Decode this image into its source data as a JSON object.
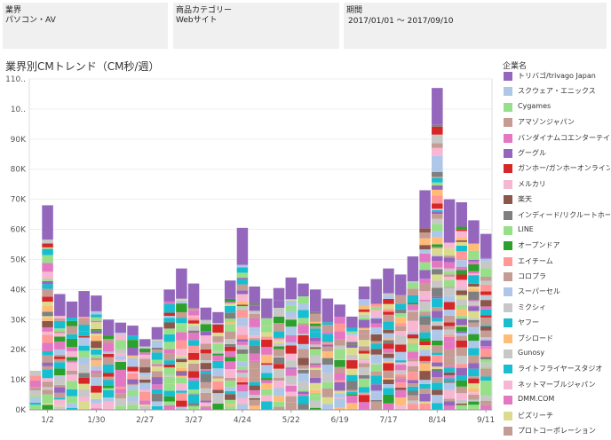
{
  "filters": [
    {
      "label": "業界",
      "value": "パソコン・AV"
    },
    {
      "label": "商品カテゴリー",
      "value": "Webサイト"
    },
    {
      "label": "期間",
      "value": "2017/01/01 ～ 2017/09/10"
    }
  ],
  "legend_title": "企業名",
  "chart_data": {
    "type": "bar",
    "stacked": true,
    "title": "業界別CMトレンド（CM秒/週）",
    "xlabel": "",
    "ylabel": "",
    "ylim": [
      0,
      110000
    ],
    "y_ticks": [
      "0K",
      "10K",
      "20K",
      "30K",
      "40K",
      "50K",
      "60K",
      "70K",
      "80K",
      "90K",
      "10..",
      "110.."
    ],
    "x_tick_labels": [
      "1/2",
      "1/30",
      "2/27",
      "3/27",
      "4/24",
      "5/22",
      "6/19",
      "7/17",
      "8/14",
      "9/11"
    ],
    "grid": true,
    "legend_placement": "right",
    "weeks": [
      "12/26",
      "1/2",
      "1/9",
      "1/16",
      "1/23",
      "1/30",
      "2/6",
      "2/13",
      "2/20",
      "2/27",
      "3/6",
      "3/13",
      "3/20",
      "3/27",
      "4/3",
      "4/10",
      "4/17",
      "4/24",
      "5/1",
      "5/8",
      "5/15",
      "5/22",
      "5/29",
      "6/5",
      "6/12",
      "6/19",
      "6/26",
      "7/3",
      "7/10",
      "7/17",
      "7/24",
      "7/31",
      "8/7",
      "8/14",
      "8/21",
      "8/28",
      "9/4",
      "9/11"
    ],
    "totals": [
      13000,
      68000,
      38500,
      36000,
      39500,
      38000,
      30000,
      29000,
      28000,
      23500,
      27500,
      40000,
      47000,
      42000,
      34000,
      32500,
      43000,
      60500,
      41000,
      37000,
      40500,
      44000,
      42000,
      40000,
      37000,
      35000,
      31000,
      41000,
      43500,
      47000,
      45000,
      51000,
      73000,
      107000,
      70000,
      69000,
      63000,
      58500
    ],
    "series": [
      {
        "name": "トリバゴ/trivago Japan",
        "color": "#9467bd"
      },
      {
        "name": "スクウェア・エニックス",
        "color": "#aec7e8"
      },
      {
        "name": "Cygames",
        "color": "#98df8a"
      },
      {
        "name": "アマゾンジャパン",
        "color": "#c49c94"
      },
      {
        "name": "バンダイナムコエンターテイン..",
        "color": "#e377c2"
      },
      {
        "name": "グーグル",
        "color": "#9467bd"
      },
      {
        "name": "ガンホー/ガンホーオンライン..",
        "color": "#d62728"
      },
      {
        "name": "メルカリ",
        "color": "#f7b6d2"
      },
      {
        "name": "楽天",
        "color": "#8c564b"
      },
      {
        "name": "インディード/リクルートホール..",
        "color": "#7f7f7f"
      },
      {
        "name": "LINE",
        "color": "#98df8a"
      },
      {
        "name": "オープンドア",
        "color": "#2ca02c"
      },
      {
        "name": "エイチーム",
        "color": "#ff9896"
      },
      {
        "name": "コロプラ",
        "color": "#c49c94"
      },
      {
        "name": "スーパーセル",
        "color": "#aec7e8"
      },
      {
        "name": "ミクシィ",
        "color": "#c7c7c7"
      },
      {
        "name": "ヤフー",
        "color": "#17becf"
      },
      {
        "name": "ブシロード",
        "color": "#ffbb78"
      },
      {
        "name": "Gunosy",
        "color": "#c7c7c7"
      },
      {
        "name": "ライトフライヤースタジオ",
        "color": "#17becf"
      },
      {
        "name": "ネットマーブルジャパン",
        "color": "#f7b6d2"
      },
      {
        "name": "DMM.COM",
        "color": "#e377c2"
      },
      {
        "name": "ビズリーチ",
        "color": "#dbdb8d"
      },
      {
        "name": "プロトコーポレーション",
        "color": "#c49c94"
      }
    ]
  }
}
